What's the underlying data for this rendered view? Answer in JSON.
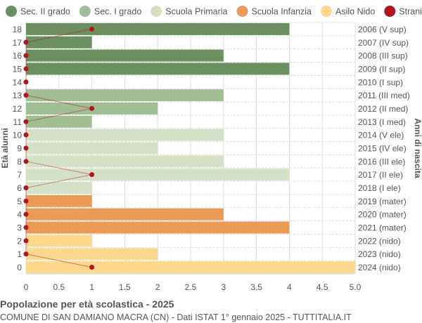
{
  "chart_data": {
    "type": "bar",
    "orientation": "horizontal",
    "title": "Popolazione per età scolastica - 2025",
    "subtitle": "COMUNE DI SAN DAMIANO MACRA (CN) - Dati ISTAT 1° gennaio 2025 - TUTTITALIA.IT",
    "ylabel": "Età alunni",
    "ylabel_right": "Anni di nascita",
    "xlim": [
      0,
      5
    ],
    "xticks": [
      "0",
      "0.5",
      "1",
      "1.5",
      "2",
      "2.5",
      "3",
      "3.5",
      "4",
      "4.5",
      "5.0"
    ],
    "grid": true,
    "legend_position": "top",
    "legend": [
      {
        "name": "Sec. II grado",
        "color": "#6b8f5e"
      },
      {
        "name": "Sec. I grado",
        "color": "#a0bd94"
      },
      {
        "name": "Scuola Primaria",
        "color": "#d4e1c8"
      },
      {
        "name": "Scuola Infanzia",
        "color": "#eb9a55"
      },
      {
        "name": "Asilo Nido",
        "color": "#fdd88c"
      },
      {
        "name": "Stranieri",
        "color": "#b0161e"
      }
    ],
    "rows": [
      {
        "age": "18",
        "year": "2006 (V sup)",
        "value": 4,
        "stranieri": 1,
        "group": 0
      },
      {
        "age": "17",
        "year": "2007 (IV sup)",
        "value": 1,
        "stranieri": 0,
        "group": 0
      },
      {
        "age": "16",
        "year": "2008 (III sup)",
        "value": 3,
        "stranieri": 0,
        "group": 0
      },
      {
        "age": "15",
        "year": "2009 (II sup)",
        "value": 4,
        "stranieri": 0,
        "group": 0
      },
      {
        "age": "14",
        "year": "2010 (I sup)",
        "value": 0,
        "stranieri": 0,
        "group": 0
      },
      {
        "age": "13",
        "year": "2011 (III med)",
        "value": 3,
        "stranieri": 0,
        "group": 1
      },
      {
        "age": "12",
        "year": "2012 (II med)",
        "value": 2,
        "stranieri": 1,
        "group": 1
      },
      {
        "age": "11",
        "year": "2013 (I med)",
        "value": 1,
        "stranieri": 0,
        "group": 1
      },
      {
        "age": "10",
        "year": "2014 (V ele)",
        "value": 3,
        "stranieri": 0,
        "group": 2
      },
      {
        "age": "9",
        "year": "2015 (IV ele)",
        "value": 2,
        "stranieri": 0,
        "group": 2
      },
      {
        "age": "8",
        "year": "2016 (III ele)",
        "value": 3,
        "stranieri": 0,
        "group": 2
      },
      {
        "age": "7",
        "year": "2017 (II ele)",
        "value": 4,
        "stranieri": 1,
        "group": 2
      },
      {
        "age": "6",
        "year": "2018 (I ele)",
        "value": 1,
        "stranieri": 0,
        "group": 2
      },
      {
        "age": "5",
        "year": "2019 (mater)",
        "value": 1,
        "stranieri": 0,
        "group": 3
      },
      {
        "age": "4",
        "year": "2020 (mater)",
        "value": 3,
        "stranieri": 0,
        "group": 3
      },
      {
        "age": "3",
        "year": "2021 (mater)",
        "value": 4,
        "stranieri": 0,
        "group": 3
      },
      {
        "age": "2",
        "year": "2022 (nido)",
        "value": 1,
        "stranieri": 0,
        "group": 4
      },
      {
        "age": "1",
        "year": "2023 (nido)",
        "value": 2,
        "stranieri": 0,
        "group": 4
      },
      {
        "age": "0",
        "year": "2024 (nido)",
        "value": 5,
        "stranieri": 1,
        "group": 4
      }
    ]
  }
}
